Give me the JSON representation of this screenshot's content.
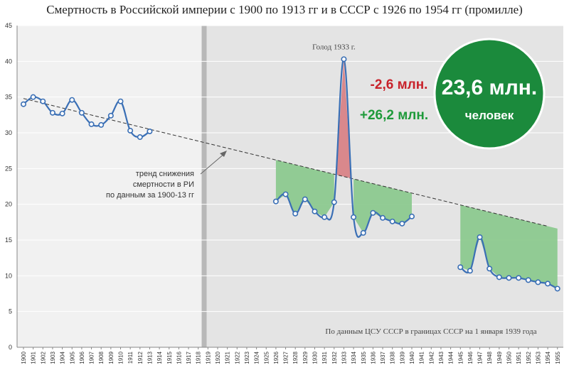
{
  "chart_data": {
    "type": "line",
    "title": "Смертность в Российской империи с 1900 по 1913 гг и в СССР с 1926 по 1954 гг (промилле)",
    "ylim": [
      0,
      45
    ],
    "yticks": [
      0,
      5,
      10,
      15,
      20,
      25,
      30,
      35,
      40,
      45
    ],
    "grid": true,
    "x_start": 1900,
    "x_end": 1955,
    "series": [
      {
        "segment": "ri",
        "x": [
          1900,
          1901,
          1902,
          1903,
          1904,
          1905,
          1906,
          1907,
          1908,
          1909,
          1910,
          1911,
          1912,
          1913
        ],
        "values": [
          34.0,
          35.0,
          34.4,
          32.8,
          32.7,
          34.6,
          32.8,
          31.2,
          31.1,
          32.4,
          34.4,
          30.3,
          29.4,
          30.2
        ]
      },
      {
        "segment": "ussr_1926_1940",
        "x": [
          1926,
          1927,
          1928,
          1929,
          1930,
          1931,
          1932,
          1933,
          1934,
          1935,
          1936,
          1937,
          1938,
          1939,
          1940
        ],
        "values": [
          20.4,
          21.4,
          18.7,
          20.7,
          19.0,
          18.2,
          20.3,
          40.3,
          18.2,
          16.0,
          18.8,
          18.1,
          17.6,
          17.3,
          18.3
        ]
      },
      {
        "segment": "ussr_1945_1955",
        "x": [
          1945,
          1946,
          1947,
          1948,
          1949,
          1950,
          1951,
          1952,
          1953,
          1954,
          1955
        ],
        "values": [
          11.2,
          10.7,
          15.4,
          11.0,
          9.8,
          9.7,
          9.7,
          9.4,
          9.1,
          8.9,
          8.2
        ]
      }
    ],
    "trend": {
      "label": "тренд снижения смертности в РИ по данным за 1900-13 гг",
      "x": [
        1900,
        1955
      ],
      "values": [
        34.8,
        16.6
      ]
    },
    "shaded_gain": [
      {
        "x": [
          1926,
          1932
        ]
      },
      {
        "x": [
          1934,
          1940
        ]
      },
      {
        "x": [
          1945,
          1955
        ]
      }
    ],
    "shaded_loss": {
      "x": [
        1932,
        1934
      ]
    },
    "annotations": {
      "famine": "Голод 1933 г.",
      "trend_line1": "тренд снижения",
      "trend_line2": "смертности в РИ",
      "trend_line3": "по данным за 1900-13 гг",
      "loss": "-2,6 млн.",
      "gain": "+26,2 млн.",
      "badge_number": "23,6 млн.",
      "badge_unit": "человек",
      "source": "По данным ЦСУ СССР в границах СССР на 1 января 1939 года"
    },
    "colors": {
      "line": "#3a6fb5",
      "marker_fill": "#ffffff",
      "gain_fill": "#8cc98f",
      "loss_fill": "#d9888c",
      "badge": "#1b8a3c",
      "left_panel_bg": "#f1f1f1",
      "right_panel_bg": "#e4e4e4"
    }
  }
}
